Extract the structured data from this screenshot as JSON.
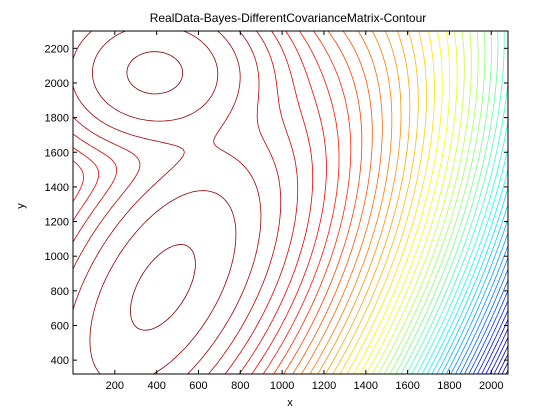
{
  "chart_data": {
    "type": "contour",
    "title": "RealData-Bayes-DifferentCovarianceMatrix-Contour",
    "xlabel": "x",
    "ylabel": "y",
    "xlim": [
      0,
      2080
    ],
    "ylim": [
      320,
      2300
    ],
    "xticks": [
      200,
      400,
      600,
      800,
      1000,
      1200,
      1400,
      1600,
      1800,
      2000
    ],
    "yticks": [
      400,
      600,
      800,
      1000,
      1200,
      1400,
      1600,
      1800,
      2000,
      2200
    ],
    "grid": false,
    "colormap": "jet",
    "levels": 50,
    "components": [
      {
        "center": [
          390,
          2060
        ],
        "sigma": [
          230,
          210
        ],
        "rho": 0.0,
        "weight": 1.0
      },
      {
        "center": [
          430,
          820
        ],
        "sigma": [
          270,
          430
        ],
        "rho": 0.55,
        "weight": 1.0
      }
    ]
  }
}
